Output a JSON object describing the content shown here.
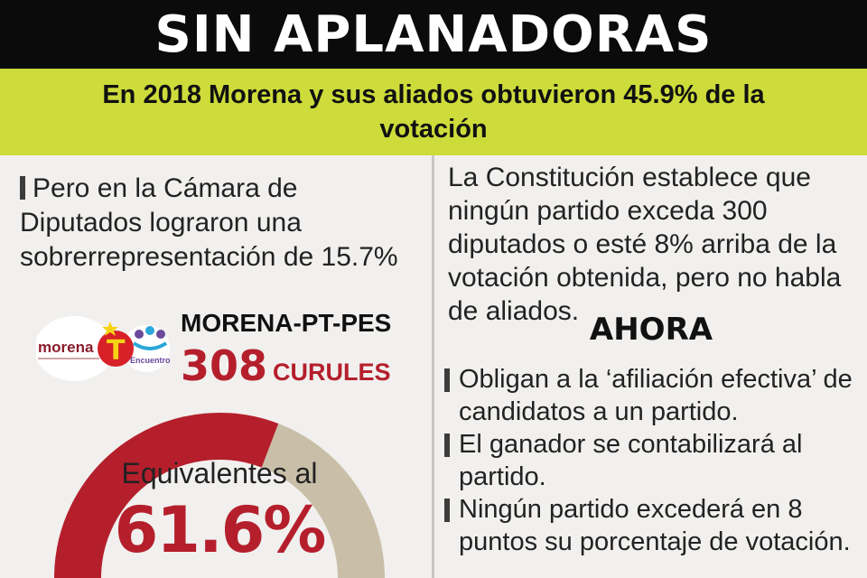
{
  "header": {
    "title": "SIN APLANADORAS"
  },
  "subtitle": {
    "text": "En 2018 Morena y sus aliados obtuvieron 45.9% de la votación"
  },
  "left": {
    "intro": "Pero en la Cámara de Diputados lograron una sobrerrepresentación de 15.7%",
    "party": "MORENA-PT-PES",
    "logo_text": {
      "morena": "morena",
      "pt": "T",
      "pes": "Encuentro Social"
    },
    "seats_number": "308",
    "seats_unit": "CURULES",
    "equiv_label": "Equivalentes al",
    "equiv_value": "61.6%",
    "gauge_fraction": 0.616,
    "colors": {
      "filled": "#b51f2c",
      "rest": "#c9bfa8",
      "accent": "#b51f2c"
    }
  },
  "right": {
    "intro": "La Constitución establece que ningún partido exceda 300 diputados o esté 8% arriba de la votación obtenida, pero no habla de aliados.",
    "heading": "AHORA",
    "bullets": [
      "Obligan a la ‘afiliación efectiva’ de candidatos a un partido.",
      "El ganador se contabilizará al partido.",
      "Ningún partido excederá en 8 puntos su porcentaje de votación."
    ]
  }
}
